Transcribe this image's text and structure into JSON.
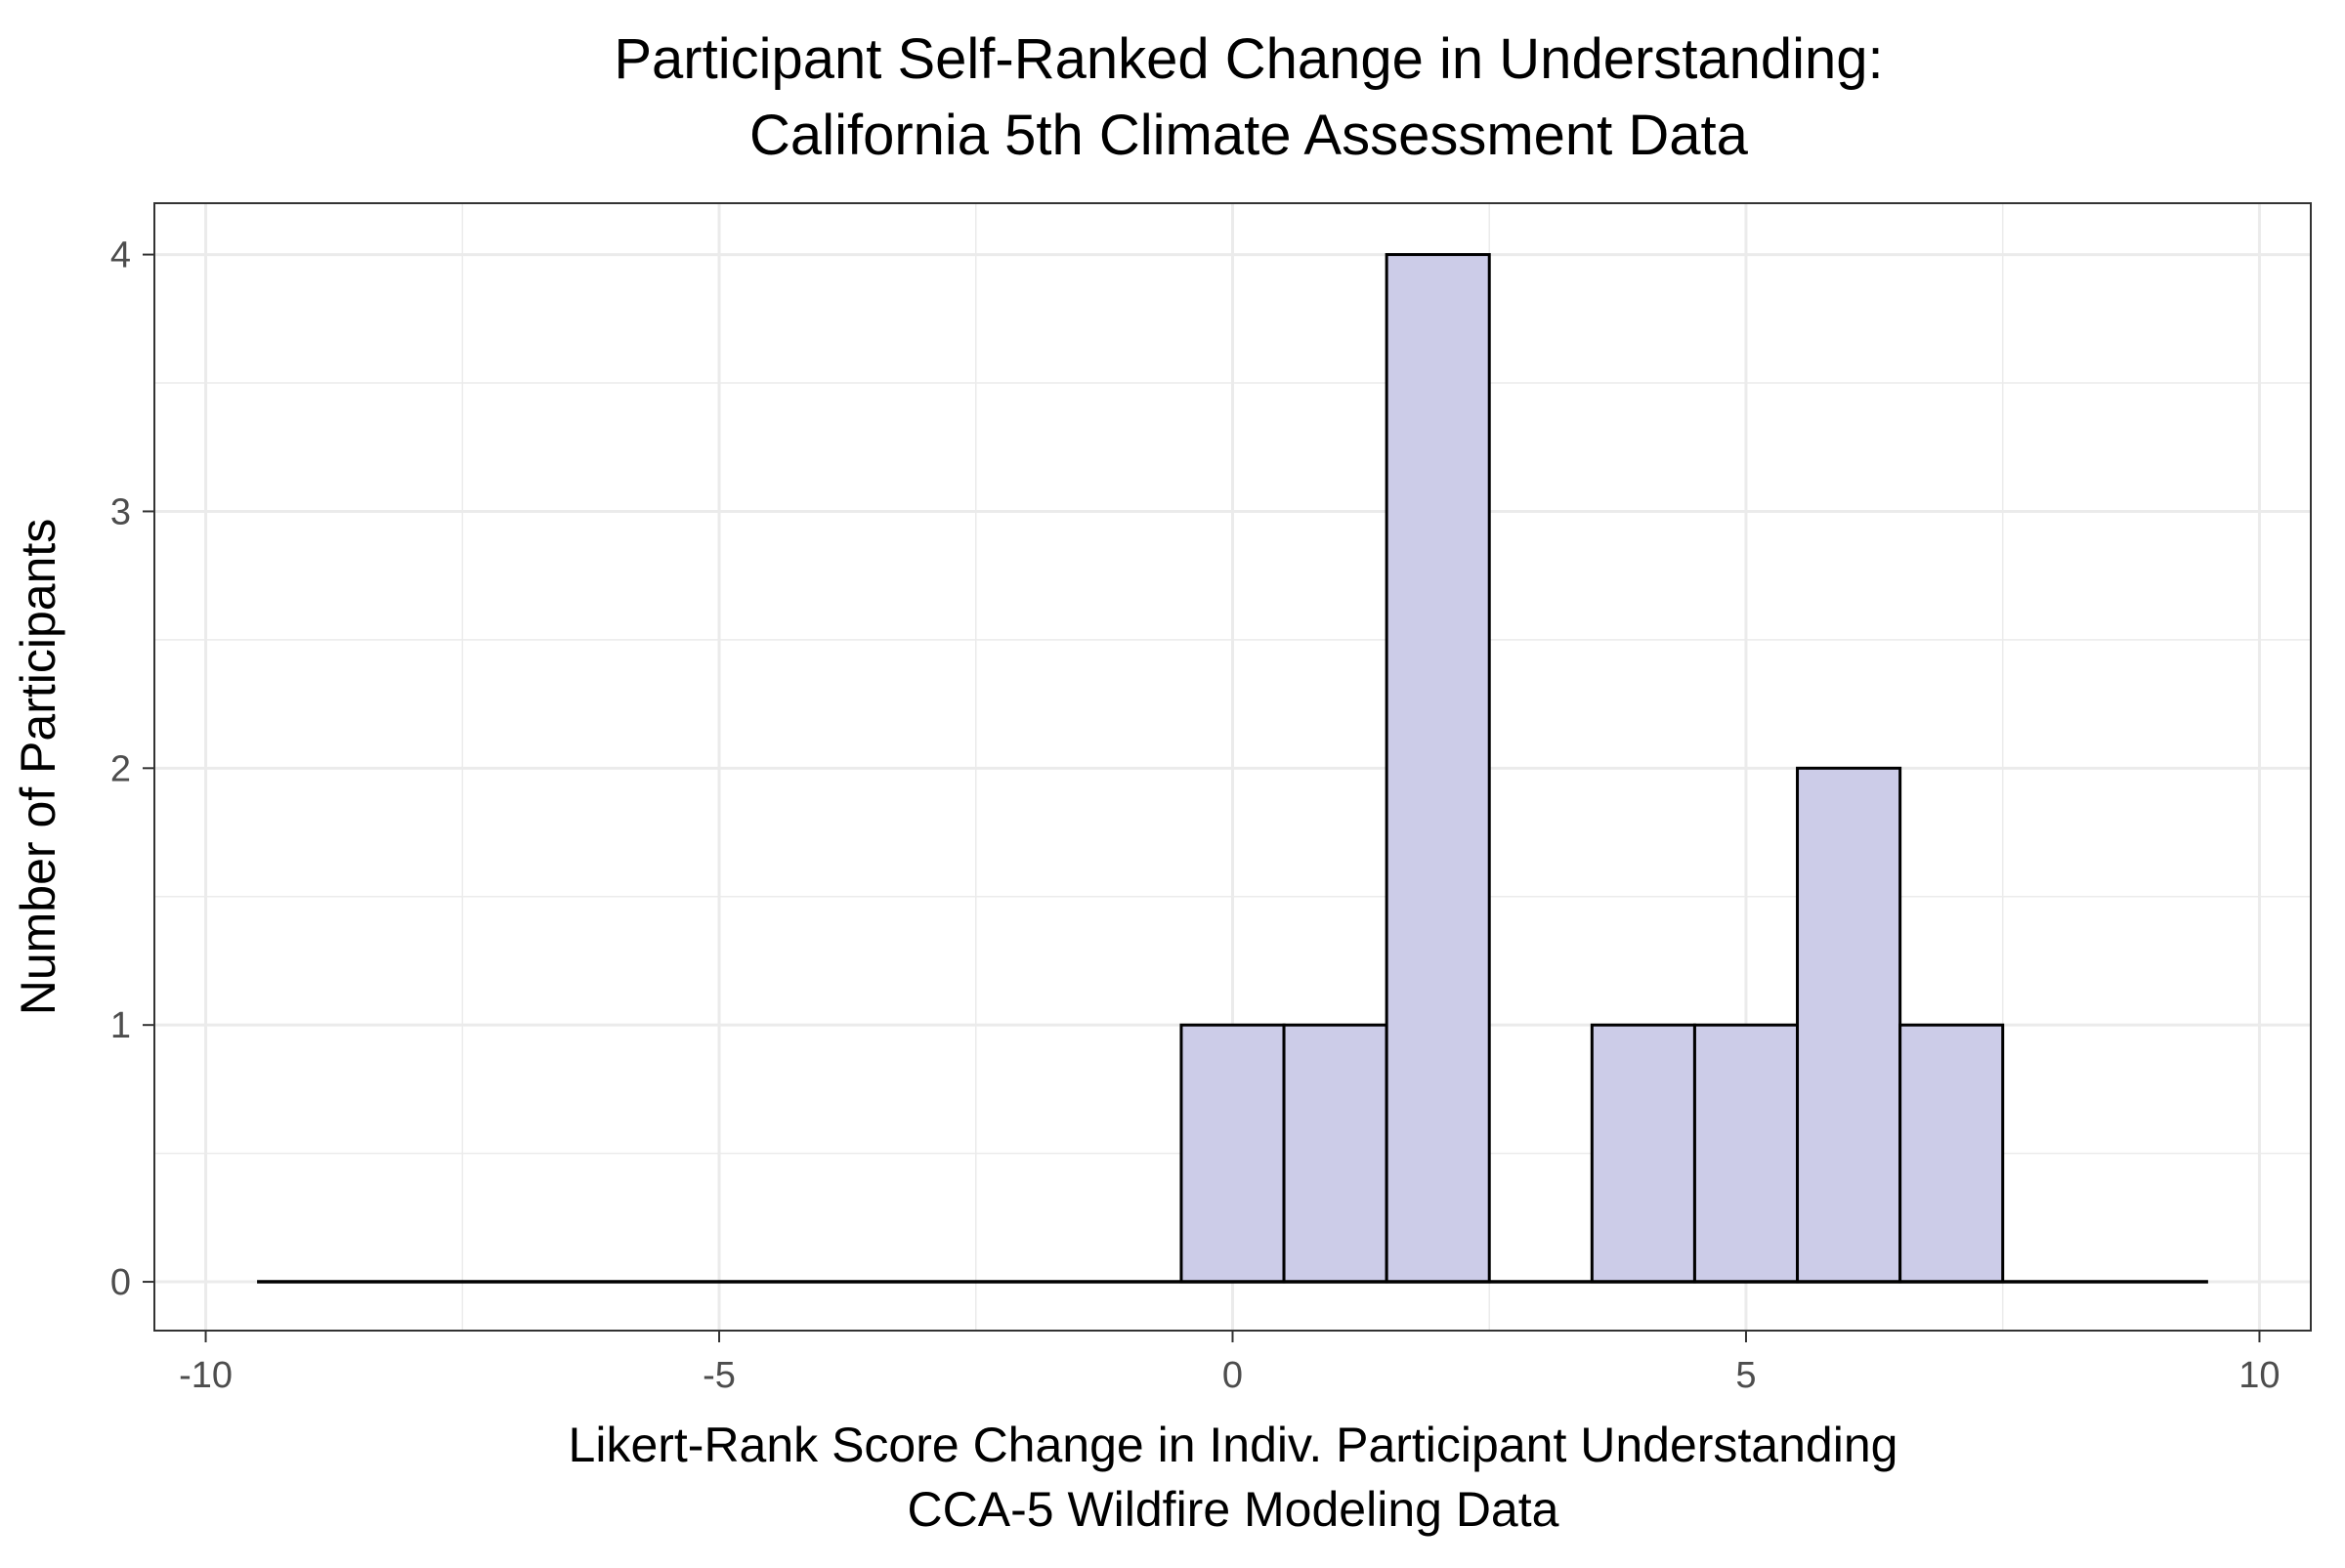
{
  "chart_data": {
    "type": "bar",
    "title_lines": [
      "Participant Self-Ranked Change in Understanding:",
      "California 5th Climate Assessment Data"
    ],
    "xlabel_lines": [
      "Likert-Rank Score Change in Indiv. Participant Understanding",
      "CCA-5 Wildfire Modeling Data"
    ],
    "ylabel": "Number of Participants",
    "xlim": [
      -10.5,
      10.5
    ],
    "ylim": [
      -0.19,
      4.2
    ],
    "x_ticks": [
      -10,
      -5,
      0,
      5,
      10
    ],
    "x_tick_labels": [
      "-10",
      "-5",
      "0",
      "5",
      "10"
    ],
    "y_ticks": [
      0,
      1,
      2,
      3,
      4
    ],
    "y_tick_labels": [
      "0",
      "1",
      "2",
      "3",
      "4"
    ],
    "bin_width": 1,
    "x": [
      -9,
      -8,
      -7,
      -6,
      -5,
      -4,
      -3,
      -2,
      -1,
      0,
      1,
      2,
      3,
      4,
      5,
      6,
      7,
      8,
      9
    ],
    "values": [
      0,
      0,
      0,
      0,
      0,
      0,
      0,
      0,
      0,
      1,
      1,
      4,
      0,
      1,
      1,
      2,
      1,
      0,
      0
    ],
    "grid": true,
    "bar_fill": "#ccccE8",
    "bar_stroke": "#000000",
    "panel_border": "#333333",
    "grid_color": "#EBEBEB"
  }
}
